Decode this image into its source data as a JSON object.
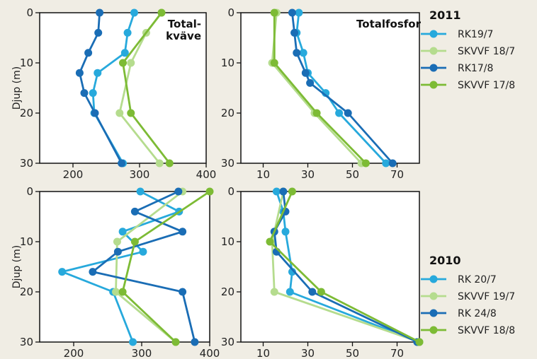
{
  "colors": {
    "rk_july": "#27a9dc",
    "skvvf_july": "#b5dc8e",
    "rk_aug": "#1a6db5",
    "skvvf_aug": "#7dbb35",
    "background": "#f0ede4",
    "plot_bg": "#ffffff"
  },
  "chart_data": [
    {
      "type": "line",
      "id": "n2011",
      "title": "Total-\nkväve",
      "title_lines": [
        "Total-",
        "kväve"
      ],
      "ylabel": "Djup (m)",
      "xlim": [
        150,
        400
      ],
      "ylim": [
        30,
        0
      ],
      "xticks": [
        200,
        300,
        400
      ],
      "yticks": [
        0,
        10,
        20,
        30
      ],
      "series": [
        {
          "name": "RK19/7",
          "x": [
            292,
            282,
            278,
            237,
            230,
            232,
            275
          ],
          "y": [
            0,
            4,
            8,
            12,
            16,
            20,
            30
          ]
        },
        {
          "name": "SKVVF 18/7",
          "x": [
            333,
            310,
            287,
            270,
            330
          ],
          "y": [
            0,
            4,
            10,
            20,
            30
          ]
        },
        {
          "name": "RK17/8",
          "x": [
            240,
            238,
            223,
            210,
            217,
            233,
            273
          ],
          "y": [
            0,
            4,
            8,
            12,
            16,
            20,
            30
          ]
        },
        {
          "name": "SKVVF 17/8",
          "x": [
            333,
            275,
            287,
            345
          ],
          "y": [
            0,
            10,
            20,
            30
          ]
        }
      ]
    },
    {
      "type": "line",
      "id": "p2011",
      "title": "Totalfosfor",
      "ylabel": "",
      "xlim": [
        0,
        80
      ],
      "ylim": [
        30,
        0
      ],
      "xticks": [
        10,
        30,
        50,
        70
      ],
      "xticklabels": [
        "10",
        "30",
        "50",
        "70"
      ],
      "yticks": [
        0,
        10,
        20,
        30
      ],
      "series": [
        {
          "name": "RK19/7",
          "x": [
            26,
            25,
            28,
            30,
            38,
            44,
            65
          ],
          "y": [
            0,
            4,
            8,
            12,
            16,
            20,
            30
          ]
        },
        {
          "name": "SKVVF 18/7",
          "x": [
            16,
            14,
            33,
            54
          ],
          "y": [
            0,
            10,
            20,
            30
          ]
        },
        {
          "name": "RK17/8",
          "x": [
            23,
            24,
            25,
            29,
            31,
            48,
            68
          ],
          "y": [
            0,
            4,
            8,
            12,
            14,
            20,
            30
          ]
        },
        {
          "name": "SKVVF 17/8",
          "x": [
            15,
            15,
            34,
            56
          ],
          "y": [
            0,
            10,
            20,
            30
          ]
        }
      ]
    },
    {
      "type": "line",
      "id": "n2010",
      "title": "",
      "ylabel": "Djup (m)",
      "xlim": [
        150,
        400
      ],
      "ylim": [
        30,
        0
      ],
      "xticks": [
        200,
        300,
        400
      ],
      "yticks": [
        0,
        10,
        20,
        30
      ],
      "series": [
        {
          "name": "RK 20/7",
          "x": [
            298,
            355,
            272,
            302,
            183,
            258,
            287
          ],
          "y": [
            0,
            4,
            8,
            12,
            16,
            20,
            30
          ]
        },
        {
          "name": "SKVVF 19/7",
          "x": [
            360,
            264,
            262,
            350
          ],
          "y": [
            0,
            10,
            20,
            30
          ]
        },
        {
          "name": "RK 24/8",
          "x": [
            354,
            290,
            360,
            265,
            228,
            360,
            378
          ],
          "y": [
            0,
            4,
            8,
            12,
            16,
            20,
            30
          ]
        },
        {
          "name": "SKVVF 18/8",
          "x": [
            400,
            290,
            272,
            350
          ],
          "y": [
            0,
            10,
            20,
            30
          ]
        }
      ]
    },
    {
      "type": "line",
      "id": "p2010",
      "title": "",
      "ylabel": "",
      "xlim": [
        0,
        80
      ],
      "ylim": [
        30,
        0
      ],
      "xticks": [
        10,
        30,
        50,
        70
      ],
      "xticklabels": [
        "10",
        "30",
        "50",
        "70"
      ],
      "yticks": [
        0,
        10,
        20,
        30
      ],
      "series": [
        {
          "name": "RK 20/7",
          "x": [
            16,
            19,
            20,
            23,
            22,
            80
          ],
          "y": [
            0,
            4,
            8,
            16,
            20,
            30
          ]
        },
        {
          "name": "SKVVF 19/7",
          "x": [
            19,
            14,
            15,
            80
          ],
          "y": [
            0,
            10,
            20,
            30
          ]
        },
        {
          "name": "RK 24/8",
          "x": [
            19,
            20,
            15,
            16,
            32,
            79
          ],
          "y": [
            0,
            4,
            8,
            12,
            20,
            30
          ]
        },
        {
          "name": "SKVVF 18/8",
          "x": [
            23,
            13,
            36,
            80
          ],
          "y": [
            0,
            10,
            20,
            30
          ]
        }
      ]
    }
  ],
  "legends": [
    {
      "year": "2011",
      "items": [
        "RK19/7",
        "SKVVF 18/7",
        "RK17/8",
        "SKVVF 17/8"
      ]
    },
    {
      "year": "2010",
      "items": [
        "RK 20/7",
        "SKVVF 19/7",
        "RK 24/8",
        "SKVVF 18/8"
      ]
    }
  ]
}
